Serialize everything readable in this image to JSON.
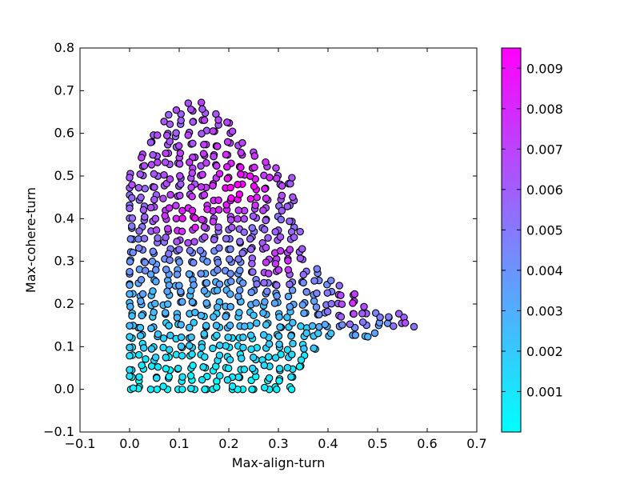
{
  "chart_data": {
    "type": "scatter",
    "title": "",
    "xlabel": "Max-align-turn",
    "ylabel": "Max-cohere-turn",
    "xlim": [
      -0.1,
      0.7
    ],
    "ylim": [
      -0.1,
      0.8
    ],
    "x_ticks": [
      "−0.1",
      "0.0",
      "0.1",
      "0.2",
      "0.3",
      "0.4",
      "0.5",
      "0.6",
      "0.7"
    ],
    "x_tick_values": [
      -0.1,
      0.0,
      0.1,
      0.2,
      0.3,
      0.4,
      0.5,
      0.6,
      0.7
    ],
    "y_ticks": [
      "−0.1",
      "0.0",
      "0.1",
      "0.2",
      "0.3",
      "0.4",
      "0.5",
      "0.6",
      "0.7",
      "0.8"
    ],
    "y_tick_values": [
      -0.1,
      0.0,
      0.1,
      0.2,
      0.3,
      0.4,
      0.5,
      0.6,
      0.7,
      0.8
    ],
    "grid": false,
    "marker": "circle",
    "marker_edge_color": "#000000",
    "colormap": "cool",
    "colormap_stops": [
      "#00ffff",
      "#ff00ff"
    ],
    "colorbar": {
      "range": [
        0.0,
        0.0095
      ],
      "ticks": [
        "0.001",
        "0.002",
        "0.003",
        "0.004",
        "0.005",
        "0.006",
        "0.007",
        "0.008",
        "0.009"
      ],
      "tick_values": [
        0.001,
        0.002,
        0.003,
        0.004,
        0.005,
        0.006,
        0.007,
        0.008,
        0.009
      ]
    },
    "point_grid_step": 0.025,
    "region_outline": [
      [
        0.0,
        0.0
      ],
      [
        0.35,
        0.0
      ],
      [
        0.35,
        0.05
      ],
      [
        0.37,
        0.08
      ],
      [
        0.39,
        0.12
      ],
      [
        0.42,
        0.13
      ],
      [
        0.45,
        0.12
      ],
      [
        0.47,
        0.11
      ],
      [
        0.5,
        0.13
      ],
      [
        0.53,
        0.14
      ],
      [
        0.57,
        0.14
      ],
      [
        0.59,
        0.16
      ],
      [
        0.56,
        0.17
      ],
      [
        0.52,
        0.19
      ],
      [
        0.48,
        0.2
      ],
      [
        0.44,
        0.24
      ],
      [
        0.4,
        0.27
      ],
      [
        0.36,
        0.3
      ],
      [
        0.35,
        0.32
      ],
      [
        0.34,
        0.4
      ],
      [
        0.33,
        0.5
      ],
      [
        0.28,
        0.53
      ],
      [
        0.24,
        0.58
      ],
      [
        0.2,
        0.63
      ],
      [
        0.17,
        0.66
      ],
      [
        0.13,
        0.68
      ],
      [
        0.09,
        0.66
      ],
      [
        0.05,
        0.62
      ],
      [
        0.02,
        0.55
      ],
      [
        0.0,
        0.52
      ]
    ],
    "hotspots": [
      {
        "x": 0.22,
        "y": 0.47,
        "value": 0.0094,
        "spread": 0.07
      },
      {
        "x": 0.11,
        "y": 0.4,
        "value": 0.0088,
        "spread": 0.06
      },
      {
        "x": 0.3,
        "y": 0.3,
        "value": 0.0078,
        "spread": 0.06
      },
      {
        "x": 0.45,
        "y": 0.2,
        "value": 0.0075,
        "spread": 0.06
      },
      {
        "x": 0.56,
        "y": 0.16,
        "value": 0.0065,
        "spread": 0.04
      },
      {
        "x": 0.08,
        "y": 0.62,
        "value": 0.0058,
        "spread": 0.05
      }
    ],
    "baseline": {
      "value_at_y0": 0.0003,
      "value_at_y05": 0.0062
    }
  }
}
